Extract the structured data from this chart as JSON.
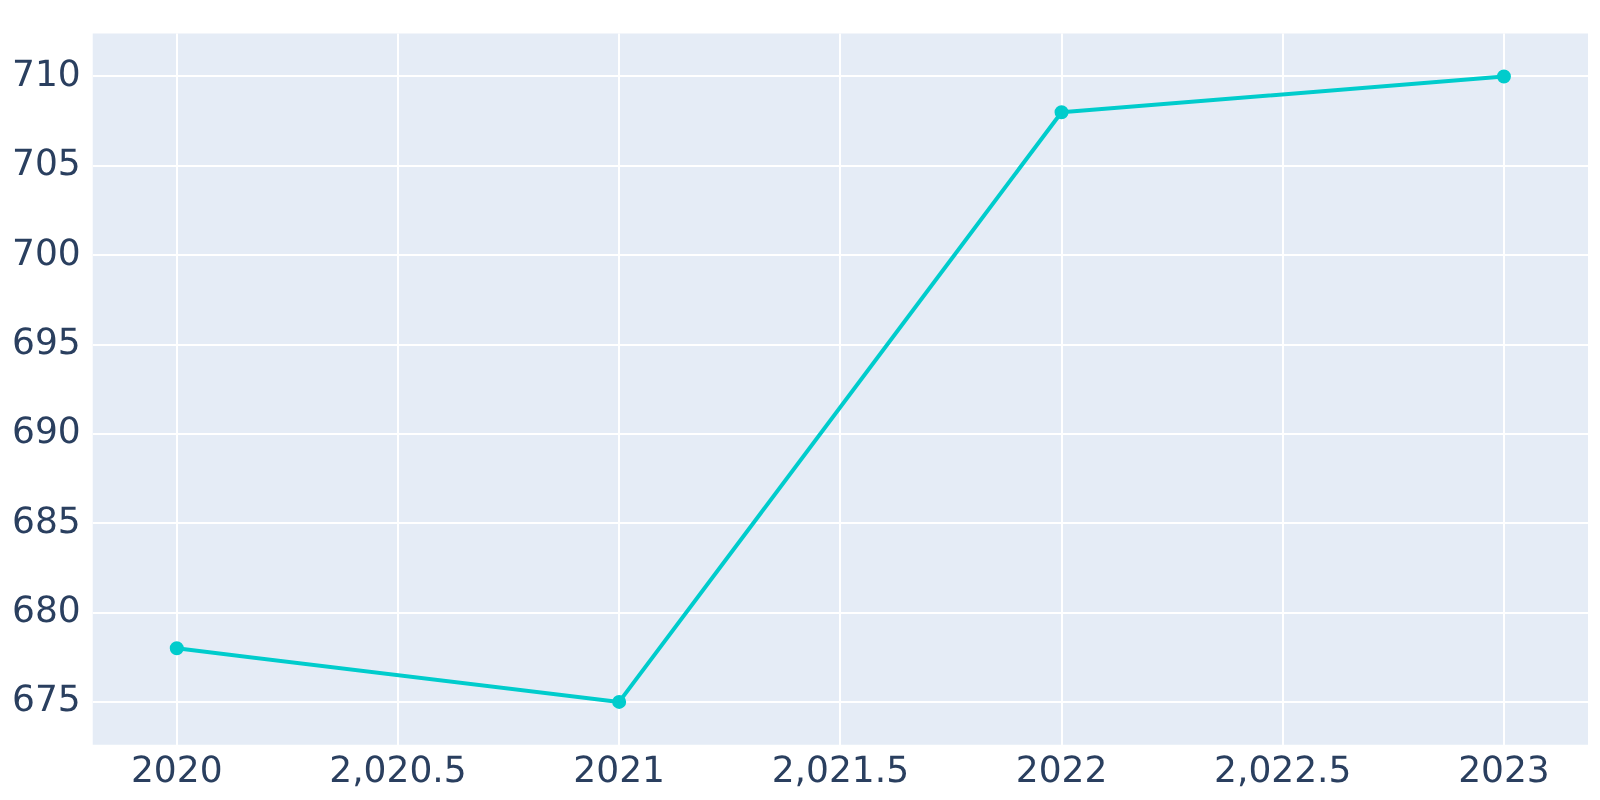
{
  "chart_data": {
    "type": "line",
    "x": [
      2020,
      2021,
      2022,
      2023
    ],
    "series": [
      {
        "color": "#00cccc",
        "values": [
          678,
          675,
          708,
          710
        ]
      }
    ],
    "xlim": [
      2019.81,
      2023.19
    ],
    "xticks": [
      2020,
      {
        "value": 2020.5,
        "label": "2,020.5"
      },
      2021,
      {
        "value": 2021.5,
        "label": "2,021.5"
      },
      2022,
      {
        "value": 2022.5,
        "label": "2,022.5"
      },
      2023
    ],
    "ylim": [
      672.6,
      712.4
    ],
    "yticks": [
      675,
      680,
      685,
      690,
      695,
      700,
      705,
      710
    ],
    "grid": true,
    "marker": "circle",
    "line_style": "solid",
    "legend": false
  }
}
